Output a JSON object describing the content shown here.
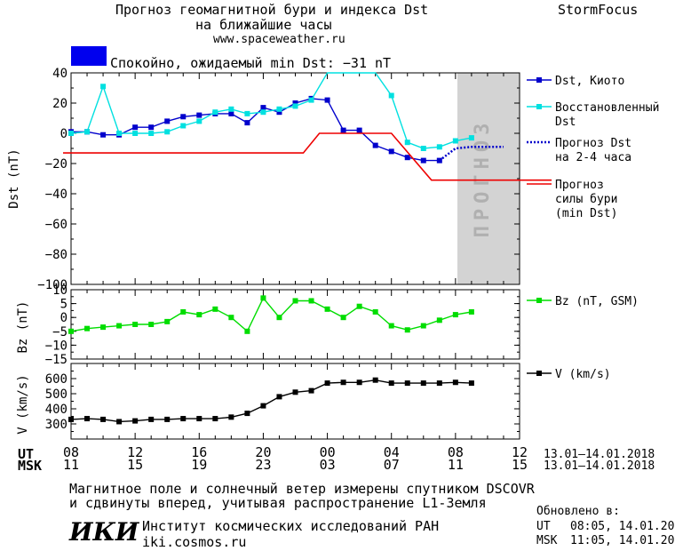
{
  "header": {
    "title_line1": "Прогноз геомагнитной бури и индекса Dst",
    "title_line2": "на ближайшие часы",
    "url": "www.spaceweather.ru",
    "brand": "StormFocus",
    "status_text": "Спокойно, ожидаемый min Dst: −31 nT",
    "status_color": "#0000ee"
  },
  "forecast_band_label": "ПРОГНОЗ",
  "time_axis": {
    "ut_label": "UT",
    "msk_label": "MSK",
    "ut_ticks": [
      "08",
      "12",
      "16",
      "20",
      "00",
      "04",
      "08",
      "12"
    ],
    "msk_ticks": [
      "11",
      "15",
      "19",
      "23",
      "03",
      "07",
      "11",
      "15"
    ],
    "ut_range": "13.01–14.01.2018",
    "msk_range": "13.01–14.01.2018"
  },
  "chart_data": [
    {
      "type": "line",
      "ylabel": "Dst (nT)",
      "ylim": [
        -100,
        40
      ],
      "yticks": [
        "40",
        "20",
        "0",
        "−20",
        "−40",
        "−60",
        "−80",
        "−100"
      ],
      "x_unit": "hours since 08 UT 13.01.2018",
      "series": [
        {
          "name": "Dst, Киото",
          "color": "#0000cc",
          "x": [
            0,
            1,
            2,
            3,
            4,
            5,
            6,
            7,
            8,
            9,
            10,
            11,
            12,
            13,
            14,
            15,
            16,
            17,
            18,
            19,
            20,
            21,
            22,
            23,
            24
          ],
          "y": [
            1,
            1,
            -1,
            -1,
            4,
            4,
            8,
            11,
            12,
            13,
            13,
            7,
            17,
            14,
            20,
            23,
            22,
            2,
            2,
            -8,
            -12,
            -16,
            -18,
            -18,
            null
          ]
        },
        {
          "name": "Восстановленный Dst",
          "color": "#00e0e0",
          "x": [
            0,
            1,
            2,
            3,
            4,
            5,
            6,
            7,
            8,
            9,
            10,
            11,
            12,
            13,
            14,
            15,
            16,
            17,
            18,
            19,
            20,
            21,
            22,
            23,
            24,
            25
          ],
          "y": [
            0,
            1,
            31,
            0,
            0,
            0,
            1,
            5,
            8,
            14,
            16,
            13,
            14,
            16,
            18,
            22,
            44,
            44,
            44,
            44,
            25,
            -6,
            -10,
            -9,
            -5,
            -3
          ]
        },
        {
          "name": "Прогноз Dst на 2-4 часа",
          "color": "#0000cc",
          "dash": true,
          "x": [
            23,
            24,
            25,
            26,
            27
          ],
          "y": [
            -18,
            -10,
            -9,
            -9,
            -9
          ]
        },
        {
          "name": "Прогноз силы бури (min Dst)",
          "color": "#ee0000",
          "x": [
            -0.5,
            14.5,
            15.5,
            20,
            22.5,
            30
          ],
          "y": [
            -13,
            -13,
            0,
            0,
            -31,
            -31
          ]
        }
      ]
    },
    {
      "type": "line",
      "ylabel": "Bz (nT)",
      "ylim": [
        -15,
        10
      ],
      "yticks": [
        "10",
        "5",
        "0",
        "−5",
        "−10",
        "−15"
      ],
      "series": [
        {
          "name": "Bz (nT, GSM)",
          "color": "#00dd00",
          "x": [
            0,
            1,
            2,
            3,
            4,
            5,
            6,
            7,
            8,
            9,
            10,
            11,
            12,
            13,
            14,
            15,
            16,
            17,
            18,
            19,
            20,
            21,
            22,
            23,
            24,
            25
          ],
          "y": [
            -5,
            -4,
            -3.5,
            -3,
            -2.5,
            -2.5,
            -1.5,
            2,
            1,
            3,
            0,
            -5,
            7,
            0,
            6,
            6,
            3,
            0,
            4,
            2,
            -3,
            -4.5,
            -3,
            -1,
            1,
            2
          ]
        }
      ]
    },
    {
      "type": "line",
      "ylabel": "V (km/s)",
      "ylim": [
        200,
        700
      ],
      "yticks": [
        "600",
        "500",
        "400",
        "300"
      ],
      "series": [
        {
          "name": "V (km/s)",
          "color": "#000000",
          "x": [
            0,
            1,
            2,
            3,
            4,
            5,
            6,
            7,
            8,
            9,
            10,
            11,
            12,
            13,
            14,
            15,
            16,
            17,
            18,
            19,
            20,
            21,
            22,
            23,
            24,
            25
          ],
          "y": [
            330,
            335,
            330,
            315,
            320,
            330,
            330,
            335,
            335,
            335,
            345,
            370,
            420,
            480,
            510,
            520,
            570,
            575,
            575,
            590,
            570,
            570,
            570,
            570,
            575,
            570
          ]
        }
      ]
    }
  ],
  "footer": {
    "note_line1": "Магнитное поле и солнечный ветер измерены спутником DSCOVR",
    "note_line2": "и сдвинуты вперед, учитывая распространение L1-Земля",
    "institute_name": "Институт космических исследований РАН",
    "institute_site": "iki.cosmos.ru",
    "logo_text": "ИКИ",
    "updated_label": "Обновлено в:",
    "updated_ut_label": "UT",
    "updated_ut": "08:05, 14.01.2018",
    "updated_msk_label": "MSK",
    "updated_msk": "11:05, 14.01.2018"
  }
}
